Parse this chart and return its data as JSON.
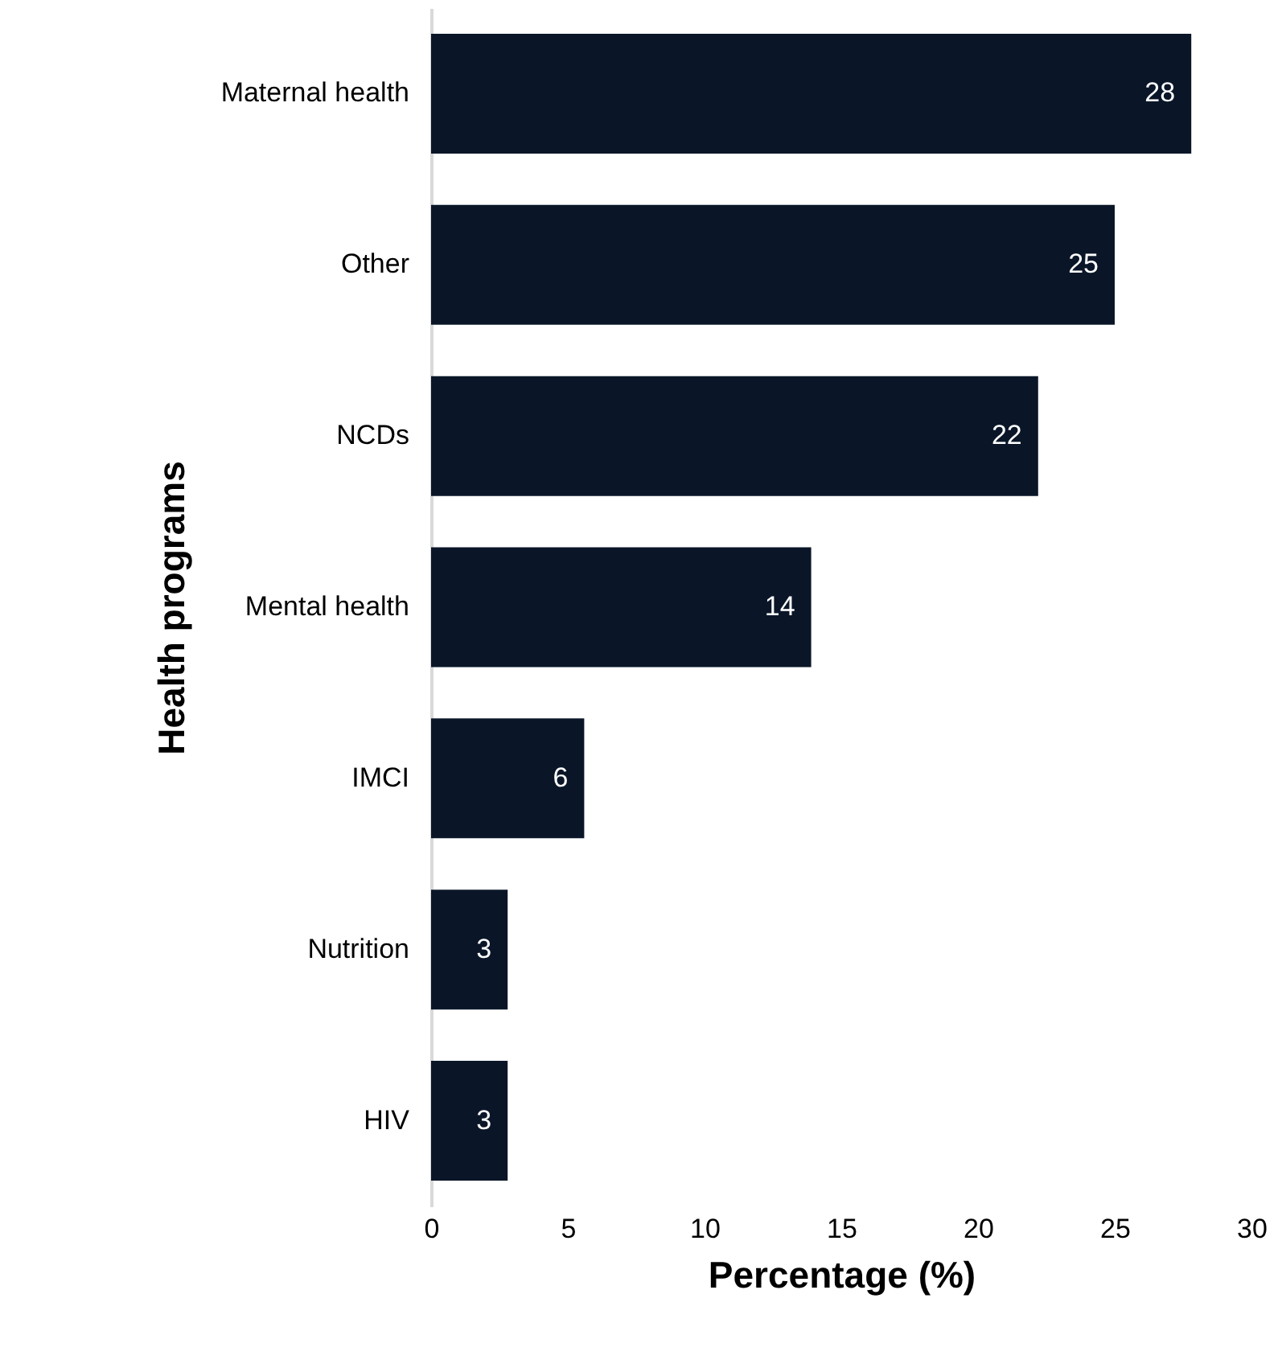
{
  "chart_data": {
    "type": "bar",
    "orientation": "horizontal",
    "xlabel": "Percentage (%)",
    "ylabel": "Health programs",
    "categories": [
      "Maternal health",
      "Other",
      "NCDs",
      "Mental health",
      "IMCI",
      "Nutrition",
      "HIV"
    ],
    "values": [
      27.8,
      25.0,
      22.2,
      13.9,
      5.6,
      2.8,
      2.8
    ],
    "value_labels": [
      "28",
      "25",
      "22",
      "14",
      "6",
      "3",
      "3"
    ],
    "color": "#0a1628",
    "xlim": [
      0,
      30
    ],
    "xticks": [
      0,
      5,
      10,
      15,
      20,
      25,
      30
    ],
    "grid": false
  }
}
